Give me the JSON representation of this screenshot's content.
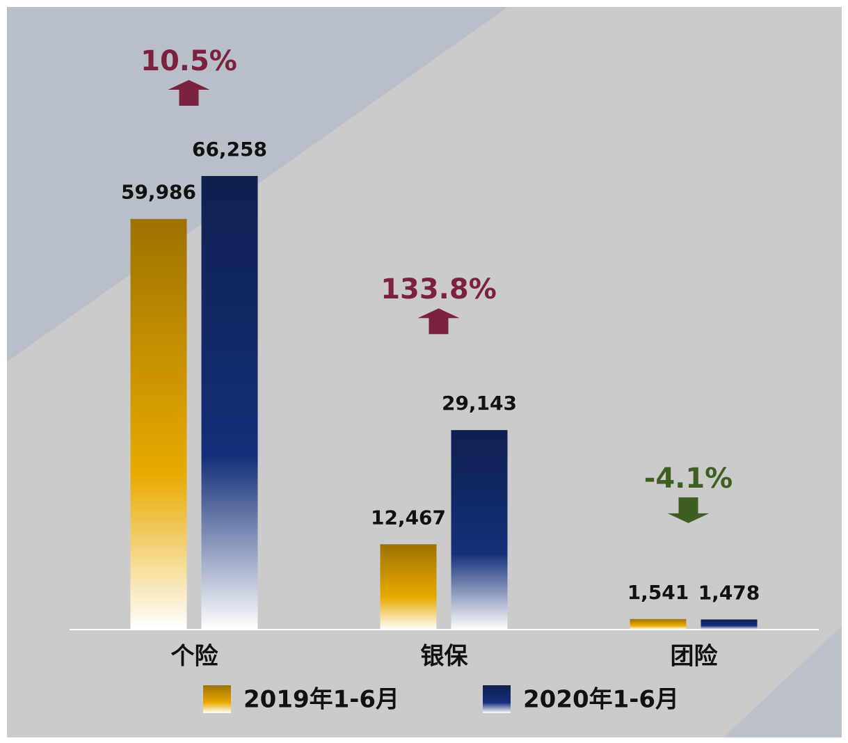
{
  "chart_data": {
    "type": "bar",
    "categories": [
      "个险",
      "银保",
      "团险"
    ],
    "series": [
      {
        "name": "2019年1-6月",
        "color": "#e8aa00",
        "values": [
          59986,
          12467,
          1541
        ],
        "value_labels": [
          "59,986",
          "12,467",
          "1,541"
        ]
      },
      {
        "name": "2020年1-6月",
        "color": "#15307a",
        "values": [
          66258,
          29143,
          1478
        ],
        "value_labels": [
          "66,258",
          "29,143",
          "1,478"
        ]
      }
    ],
    "changes": [
      {
        "value": 10.5,
        "label": "10.5%"
      },
      {
        "value": 133.8,
        "label": "133.8%"
      },
      {
        "value": -4.1,
        "label": "-4.1%"
      }
    ],
    "up_color": "#7a2240",
    "down_color": "#3d5f22"
  }
}
